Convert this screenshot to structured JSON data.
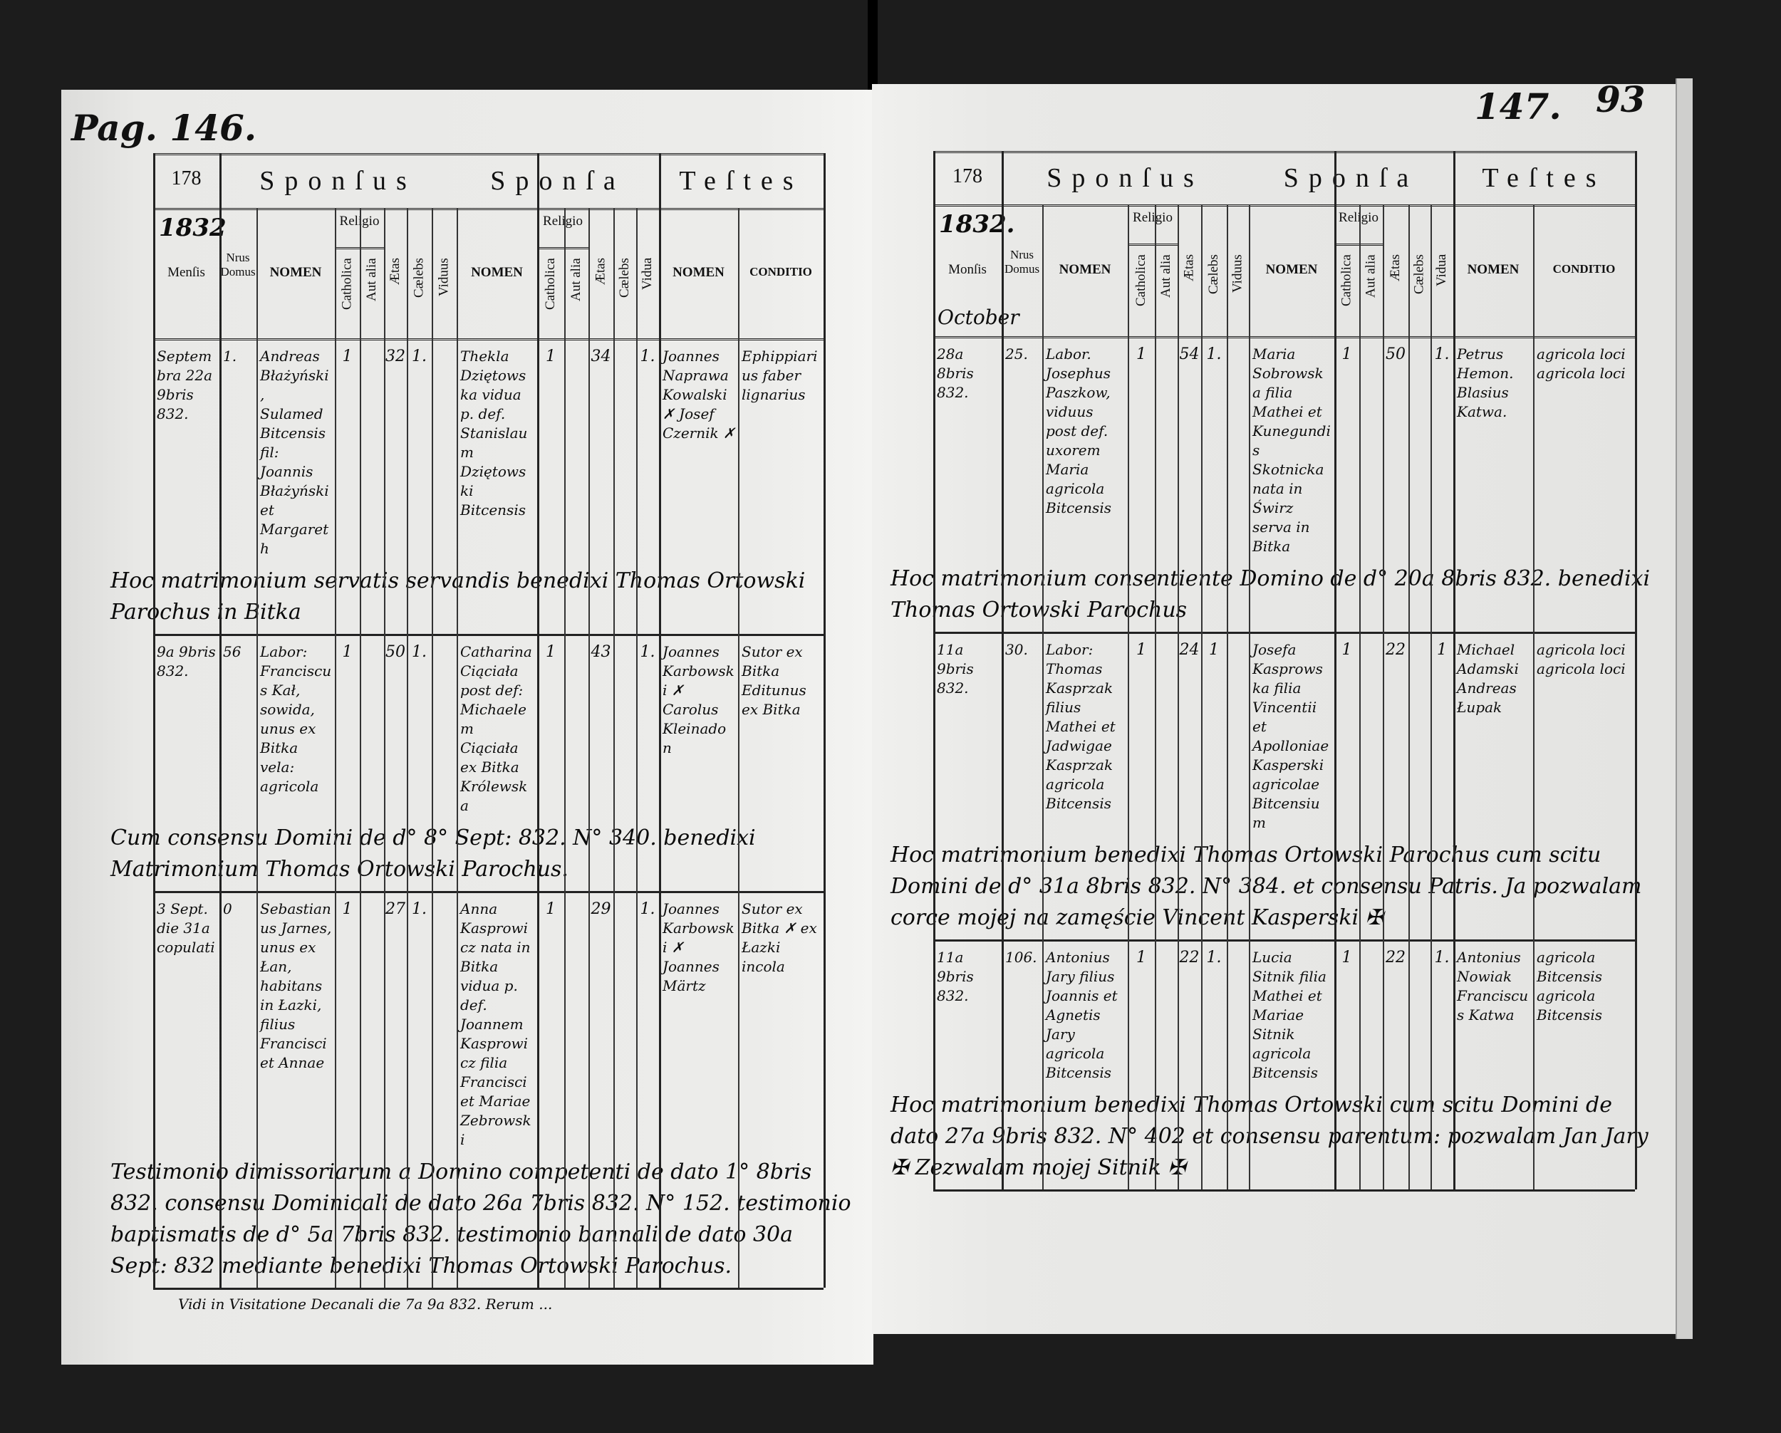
{
  "left_page": {
    "page_number": "Pag. 146.",
    "corner_number": "178",
    "year": "1832",
    "headers": {
      "sponsus": "Sponſus",
      "sponsa": "Sponſa",
      "testes": "Teſtes",
      "mensis": "Menſis",
      "nrus_domus": "Nrus Domus",
      "nomen": "NOMEN",
      "religio": "Religio",
      "catholica": "Catholica",
      "aut_alia": "Aut alia",
      "aetas": "Ætas",
      "caelebs": "Cælebs",
      "viduus": "Viduus",
      "vidua": "Vidua",
      "conditio": "CONDITIO"
    },
    "entries": [
      {
        "date": "Septembra 22a 9bris 832.",
        "nrus": "1.",
        "sponsus": "Andreas Błażyński, Sulamed Bitcensis fil: Joannis Błażyński et Margareth",
        "s_cath": "1",
        "s_aetas": "32",
        "s_status": "1.",
        "sponsa": "Thekla Dziętowska vidua p. def. Stanislaum Dziętowski Bitcensis",
        "a_cath": "1",
        "a_aetas": "34",
        "a_status": "1.",
        "testes": "Joannes Naprawa Kowalski ✗  Josef Czernik ✗",
        "conditio": "Ephippiarius  faber lignarius",
        "note": "Hoc matrimonium servatis servandis benedixi Thomas Ortowski Parochus in Bitka"
      },
      {
        "date": "9a 9bris 832.",
        "nrus": "56",
        "sponsus": "Labor: Franciscus Kał, sowida, unus ex Bitka vela: agricola",
        "s_cath": "1",
        "s_aetas": "50",
        "s_status": "1.",
        "sponsa": "Catharina Ciąciała post def: Michaelem Ciąciała ex Bitka Królewska",
        "a_cath": "1",
        "a_aetas": "43",
        "a_status": "1.",
        "testes": "Joannes Karbowski ✗  Carolus Kleinadon",
        "conditio": "Sutor ex Bitka  Editunus ex Bitka",
        "note": "Cum consensu Domini de d° 8° Sept: 832. N° 340. benedixi Matrimonium Thomas Ortowski Parochus."
      },
      {
        "date": "3 Sept. die 31a copulati",
        "nrus": "0",
        "sponsus": "Sebastianus Jarnes, unus ex Łan, habitans in Łazki, filius Francisci et Annae",
        "s_cath": "1",
        "s_aetas": "27",
        "s_status": "1.",
        "sponsa": "Anna Kasprowicz nata in Bitka vidua p. def. Joannem Kasprowicz filia Francisci et Mariae Zebrowski",
        "a_cath": "1",
        "a_aetas": "29",
        "a_status": "1.",
        "testes": "Joannes Karbowski ✗  Joannes Märtz",
        "conditio": "Sutor ex Bitka ✗  ex Łazki incola",
        "note": "Testimonio dimissoriarum a Domino competenti de dato 1° 8bris 832. consensu Dominicali de dato 26a 7bris 832. N° 152. testimonio baptismatis de d° 5a 7bris 832. testimonio bannali de dato 30a Sept: 832 mediante benedixi Thomas Ortowski Parochus."
      }
    ],
    "footer": "Vidi in Visitatione Decanali die 7a 9a 832. Rerum ..."
  },
  "right_page": {
    "page_number": "147.",
    "corner_number": "93",
    "table_corner": "178",
    "year": "1832.",
    "month": "October",
    "headers": {
      "sponsus": "Sponſus",
      "sponsa": "Sponſa",
      "testes": "Teſtes",
      "mensis": "Monſis",
      "nrus_domus": "Nrus Domus",
      "nomen": "NOMEN",
      "religio": "Religio",
      "catholica": "Catholica",
      "aut_alia": "Aut alia",
      "aetas": "Ætas",
      "caelebs": "Cælebs",
      "viduus": "Viduus",
      "vidua": "Vidua",
      "conditio": "CONDITIO"
    },
    "entries": [
      {
        "date": "28a 8bris 832.",
        "nrus": "25.",
        "sponsus": "Labor. Josephus Paszkow, viduus post def. uxorem Maria agricola Bitcensis",
        "s_cath": "1",
        "s_aetas": "54",
        "s_status": "1.",
        "sponsa": "Maria Sobrowska filia Mathei et Kunegundis Skotnicka nata in Świrz serva in Bitka",
        "a_cath": "1",
        "a_aetas": "50",
        "a_status": "1.",
        "testes": "Petrus Hemon.  Blasius Katwa.",
        "conditio": "agricola loci  agricola loci",
        "note": "Hoc matrimonium consentiente Domino de d° 20a 8bris 832. benedixi Thomas Ortowski Parochus"
      },
      {
        "date": "11a 9bris 832.",
        "nrus": "30.",
        "sponsus": "Labor: Thomas Kasprzak filius Mathei et Jadwigae Kasprzak agricola Bitcensis",
        "s_cath": "1",
        "s_aetas": "24",
        "s_status": "1",
        "sponsa": "Josefa Kasprowska filia Vincentii et Apolloniae Kasperski agricolae Bitcensium",
        "a_cath": "1",
        "a_aetas": "22",
        "a_status": "1",
        "testes": "Michael Adamski  Andreas Łupak",
        "conditio": "agricola loci  agricola loci",
        "note": "Hoc matrimonium benedixi Thomas Ortowski Parochus cum scitu Domini de d° 31a 8bris 832. N° 384. et consensu Patris. Ja pozwalam corce mojej na zamęście Vincent Kasperski ✠"
      },
      {
        "date": "11a 9bris 832.",
        "nrus": "106.",
        "sponsus": "Antonius Jary filius Joannis et Agnetis Jary agricola Bitcensis",
        "s_cath": "1",
        "s_aetas": "22",
        "s_status": "1.",
        "sponsa": "Lucia Sitnik filia Mathei et Mariae Sitnik agricola Bitcensis",
        "a_cath": "1",
        "a_aetas": "22",
        "a_status": "1.",
        "testes": "Antonius Nowiak  Franciscus Katwa",
        "conditio": "agricola Bitcensis  agricola Bitcensis",
        "note": "Hoc matrimonium benedixi Thomas Ortowski cum scitu Domini de dato 27a 9bris 832. N° 402 et consensu parentum: pozwalam Jan Jary ✠ Zezwalam mojej Sitnik ✠"
      }
    ]
  }
}
